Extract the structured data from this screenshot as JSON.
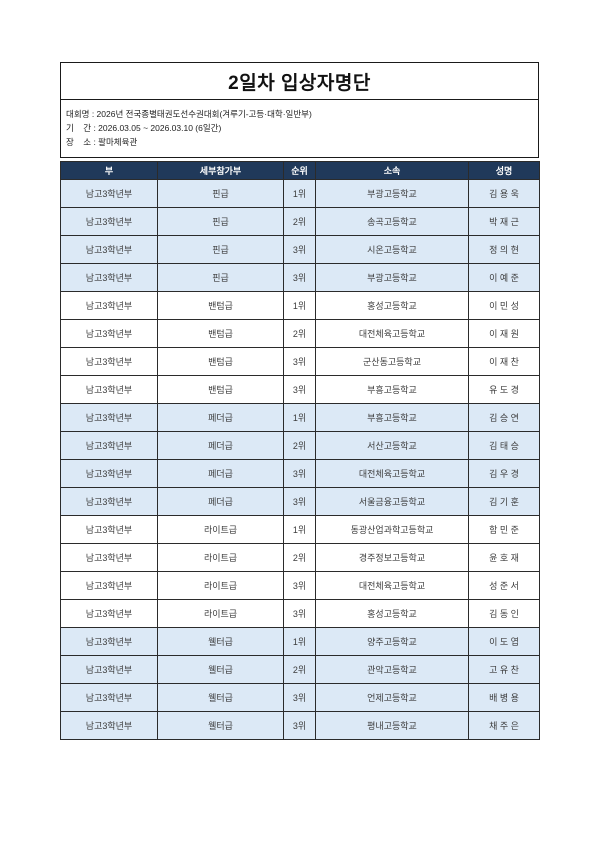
{
  "header": {
    "title": "2일차 입상자명단",
    "meta": [
      "대회명 : 2026년 전국종별태권도선수권대회(겨루기-고등·대학·일반부)",
      "기    간 : 2026.03.05 ~ 2026.03.10 (6일간)",
      "장    소 : 팔마체육관"
    ]
  },
  "colors": {
    "header_bg": "#20395a",
    "header_text": "#ffffff",
    "row_highlight": "#dce9f6",
    "border": "#2b2b2b"
  },
  "table": {
    "columns": [
      "부",
      "세부참가부",
      "순위",
      "소속",
      "성명"
    ],
    "rows": [
      {
        "highlight": true,
        "cells": [
          "남고3학년부",
          "핀급",
          "1위",
          "부광고등학교",
          "김 용 욱"
        ]
      },
      {
        "highlight": true,
        "cells": [
          "남고3학년부",
          "핀급",
          "2위",
          "송곡고등학교",
          "박 재 근"
        ]
      },
      {
        "highlight": true,
        "cells": [
          "남고3학년부",
          "핀급",
          "3위",
          "시온고등학교",
          "정 의 현"
        ]
      },
      {
        "highlight": true,
        "cells": [
          "남고3학년부",
          "핀급",
          "3위",
          "부광고등학교",
          "이 예 준"
        ]
      },
      {
        "highlight": false,
        "cells": [
          "남고3학년부",
          "밴텀급",
          "1위",
          "홍성고등학교",
          "이 민 성"
        ]
      },
      {
        "highlight": false,
        "cells": [
          "남고3학년부",
          "밴텀급",
          "2위",
          "대전체육고등학교",
          "이 재 원"
        ]
      },
      {
        "highlight": false,
        "cells": [
          "남고3학년부",
          "밴텀급",
          "3위",
          "군산동고등학교",
          "이 재 찬"
        ]
      },
      {
        "highlight": false,
        "cells": [
          "남고3학년부",
          "밴텀급",
          "3위",
          "부흥고등학교",
          "유 도 경"
        ]
      },
      {
        "highlight": true,
        "cells": [
          "남고3학년부",
          "페더급",
          "1위",
          "부흥고등학교",
          "김 승 연"
        ]
      },
      {
        "highlight": true,
        "cells": [
          "남고3학년부",
          "페더급",
          "2위",
          "서산고등학교",
          "김 태 승"
        ]
      },
      {
        "highlight": true,
        "cells": [
          "남고3학년부",
          "페더급",
          "3위",
          "대전체육고등학교",
          "김 우 경"
        ]
      },
      {
        "highlight": true,
        "cells": [
          "남고3학년부",
          "페더급",
          "3위",
          "서울금융고등학교",
          "김 기 훈"
        ]
      },
      {
        "highlight": false,
        "cells": [
          "남고3학년부",
          "라이트급",
          "1위",
          "동광산업과학고등학교",
          "함 민 준"
        ]
      },
      {
        "highlight": false,
        "cells": [
          "남고3학년부",
          "라이트급",
          "2위",
          "경주정보고등학교",
          "윤 호 재"
        ]
      },
      {
        "highlight": false,
        "cells": [
          "남고3학년부",
          "라이트급",
          "3위",
          "대전체육고등학교",
          "성 준 서"
        ]
      },
      {
        "highlight": false,
        "cells": [
          "남고3학년부",
          "라이트급",
          "3위",
          "홍성고등학교",
          "김 동 인"
        ]
      },
      {
        "highlight": true,
        "cells": [
          "남고3학년부",
          "웰터급",
          "1위",
          "양주고등학교",
          "이 도 엽"
        ]
      },
      {
        "highlight": true,
        "cells": [
          "남고3학년부",
          "웰터급",
          "2위",
          "관악고등학교",
          "고 유 찬"
        ]
      },
      {
        "highlight": true,
        "cells": [
          "남고3학년부",
          "웰터급",
          "3위",
          "언제고등학교",
          "배 병 용"
        ]
      },
      {
        "highlight": true,
        "cells": [
          "남고3학년부",
          "웰터급",
          "3위",
          "평내고등학교",
          "채 주 은"
        ]
      }
    ]
  }
}
